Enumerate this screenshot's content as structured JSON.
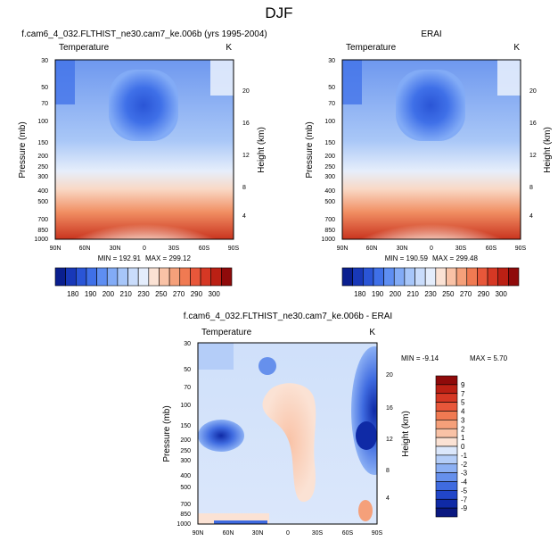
{
  "figure_title": "DJF",
  "chart_data": [
    {
      "type": "heatmap",
      "title": "f.cam6_4_032.FLTHIST_ne30.cam7_ke.006b (yrs 1995-2004)",
      "variable": "Temperature",
      "units": "K",
      "ylabel": "Pressure (mb)",
      "y2label": "Height (km)",
      "x_ticks": [
        "90N",
        "60N",
        "30N",
        "0",
        "30S",
        "60S",
        "90S"
      ],
      "y_ticks": [
        "30",
        "50",
        "70",
        "100",
        "150",
        "200",
        "250",
        "300",
        "400",
        "500",
        "700",
        "850",
        "1000"
      ],
      "height_ticks": [
        "20",
        "16",
        "12",
        "8",
        "4"
      ],
      "min_label": "MIN = 192.91",
      "max_label": "MAX = 299.12",
      "min": 192.91,
      "max": 299.12
    },
    {
      "type": "heatmap",
      "title": "ERAI",
      "variable": "Temperature",
      "units": "K",
      "ylabel": "Pressure (mb)",
      "y2label": "Height (km)",
      "x_ticks": [
        "90N",
        "60N",
        "30N",
        "0",
        "30S",
        "60S",
        "90S"
      ],
      "y_ticks": [
        "30",
        "50",
        "70",
        "100",
        "150",
        "200",
        "250",
        "300",
        "400",
        "500",
        "700",
        "850",
        "1000"
      ],
      "height_ticks": [
        "20",
        "16",
        "12",
        "8",
        "4"
      ],
      "min_label": "MIN = 190.59",
      "max_label": "MAX = 299.48",
      "min": 190.59,
      "max": 299.48
    },
    {
      "type": "heatmap",
      "title": "f.cam6_4_032.FLTHIST_ne30.cam7_ke.006b - ERAI",
      "variable": "Temperature",
      "units": "K",
      "ylabel": "Pressure (mb)",
      "y2label": "Height (km)",
      "x_ticks": [
        "90N",
        "60N",
        "30N",
        "0",
        "30S",
        "60S",
        "90S"
      ],
      "y_ticks": [
        "30",
        "50",
        "70",
        "100",
        "150",
        "200",
        "250",
        "300",
        "400",
        "500",
        "700",
        "850",
        "1000"
      ],
      "height_ticks": [
        "20",
        "16",
        "12",
        "8",
        "4"
      ],
      "min_label": "MIN =  -9.14",
      "max_label": "MAX =   5.70",
      "min": -9.14,
      "max": 5.7
    }
  ],
  "abs_colorbar": {
    "labels": [
      "180",
      "190",
      "200",
      "210",
      "230",
      "250",
      "270",
      "290",
      "300"
    ],
    "colors": [
      "#0a1f8f",
      "#1838b8",
      "#2a55d6",
      "#3f70e8",
      "#5e8ef2",
      "#82abf6",
      "#a7c6f9",
      "#c9dcfb",
      "#e4edfc",
      "#fbe2d4",
      "#f9c2a6",
      "#f5a07a",
      "#f07a52",
      "#e8573a",
      "#d63824",
      "#bb2014",
      "#8f0a0a"
    ]
  },
  "diff_colorbar": {
    "labels": [
      "9",
      "7",
      "5",
      "4",
      "3",
      "2",
      "1",
      "0",
      "-1",
      "-2",
      "-3",
      "-4",
      "-5",
      "-7",
      "-9"
    ],
    "colors": [
      "#8f0a0a",
      "#bb2014",
      "#d63824",
      "#e8573a",
      "#f07a52",
      "#f5a07a",
      "#f9c2a6",
      "#fbe2d4",
      "#dbe7fb",
      "#b4cdf8",
      "#8cb0f4",
      "#6690ec",
      "#3f6be0",
      "#2146c9",
      "#0f2aa6",
      "#0a1880"
    ]
  }
}
